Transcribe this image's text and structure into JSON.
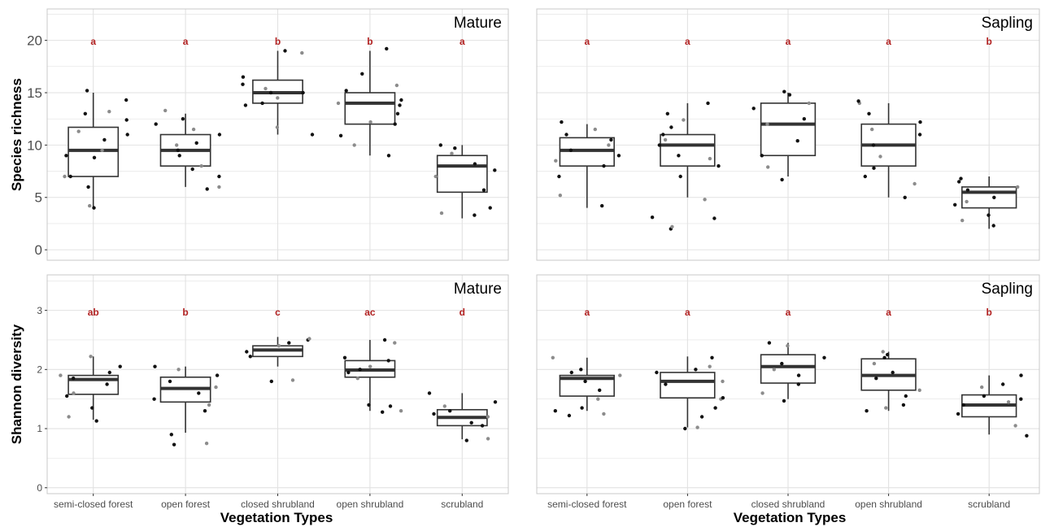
{
  "x_axis_title": "Vegetation Types",
  "colors": {
    "letter": "#b22222",
    "box_stroke": "#333333",
    "point": "#111111",
    "point_light": "#8c8c8c",
    "grid": "#e2e2e2",
    "panel_border": "#c8c8c8"
  },
  "chart_data": [
    {
      "type": "box",
      "row": "top",
      "col": "left",
      "panel_label": "Mature",
      "ylabel": "Species richness",
      "ylim": [
        -1,
        23
      ],
      "yticks": [
        0,
        5,
        10,
        15,
        20
      ],
      "categories": [
        "semi-closed forest",
        "open forest",
        "closed shrubland",
        "open shrubland",
        "scrubland"
      ],
      "letters": [
        "a",
        "a",
        "b",
        "b",
        "a"
      ],
      "boxes": [
        {
          "whisker_low": 4,
          "q1": 7,
          "median": 9.5,
          "q3": 11.7,
          "whisker_high": 15
        },
        {
          "whisker_low": 6,
          "q1": 8,
          "median": 9.5,
          "q3": 11,
          "whisker_high": 13
        },
        {
          "whisker_low": 11,
          "q1": 14,
          "median": 15,
          "q3": 16.2,
          "whisker_high": 19
        },
        {
          "whisker_low": 9,
          "q1": 12,
          "median": 14,
          "q3": 15,
          "whisker_high": 19
        },
        {
          "whisker_low": 3,
          "q1": 5.5,
          "median": 8,
          "q3": 9,
          "whisker_high": 10
        }
      ],
      "points": [
        [
          4,
          4.2,
          6,
          7,
          7,
          8.8,
          9,
          9.5,
          10.5,
          11,
          11.3,
          12.4,
          13,
          13.2,
          14.3,
          15.2
        ],
        [
          5.8,
          6,
          7,
          7.7,
          8,
          9,
          9.5,
          10,
          10.2,
          11,
          11.5,
          12,
          12.5,
          13.3
        ],
        [
          11,
          11.7,
          13.8,
          14,
          14.5,
          15,
          15,
          15.4,
          15.8,
          16.5,
          18.8,
          19
        ],
        [
          9,
          10,
          10.9,
          12,
          12.2,
          13,
          13.8,
          14,
          14.3,
          15.2,
          15.7,
          16.8,
          19.2
        ],
        [
          3.3,
          3.5,
          4,
          5.7,
          7,
          7.6,
          8.2,
          9.2,
          9.7,
          10
        ]
      ]
    },
    {
      "type": "box",
      "row": "top",
      "col": "right",
      "panel_label": "Sapling",
      "ylabel": "",
      "ylim": [
        -1,
        23
      ],
      "yticks": [
        0,
        5,
        10,
        15,
        20
      ],
      "categories": [
        "semi-closed forest",
        "open forest",
        "closed shrubland",
        "open shrubland",
        "scrubland"
      ],
      "letters": [
        "a",
        "a",
        "a",
        "a",
        "b"
      ],
      "boxes": [
        {
          "whisker_low": 4,
          "q1": 8,
          "median": 9.5,
          "q3": 10.7,
          "whisker_high": 12
        },
        {
          "whisker_low": 5,
          "q1": 8,
          "median": 10,
          "q3": 11,
          "whisker_high": 14
        },
        {
          "whisker_low": 7,
          "q1": 9,
          "median": 12,
          "q3": 14,
          "whisker_high": 15
        },
        {
          "whisker_low": 5,
          "q1": 8,
          "median": 10,
          "q3": 12,
          "whisker_high": 14
        },
        {
          "whisker_low": 2,
          "q1": 4,
          "median": 5.5,
          "q3": 6,
          "whisker_high": 7
        }
      ],
      "points": [
        [
          4.2,
          5.2,
          7,
          8,
          8.5,
          9,
          9.5,
          10,
          10.5,
          11,
          11.5,
          12.2
        ],
        [
          2,
          2.2,
          3,
          3.1,
          4.8,
          7,
          8,
          8.7,
          9,
          10,
          10.5,
          11,
          11.7,
          12.4,
          13,
          14
        ],
        [
          6.7,
          7.9,
          9,
          10.4,
          12,
          12.5,
          13.5,
          14,
          14.8,
          15.1
        ],
        [
          5,
          6.3,
          7,
          7.8,
          8.9,
          10,
          11,
          11.5,
          12.2,
          13,
          14,
          14.2
        ],
        [
          2.3,
          2.8,
          3.3,
          4.3,
          4.6,
          5,
          5.7,
          6,
          6.5,
          6.8
        ]
      ]
    },
    {
      "type": "box",
      "row": "bottom",
      "col": "left",
      "panel_label": "Mature",
      "ylabel": "Shannon diversity",
      "ylim": [
        -0.1,
        3.6
      ],
      "yticks": [
        0,
        1,
        2,
        3
      ],
      "categories": [
        "semi-closed forest",
        "open forest",
        "closed shrubland",
        "open shrubland",
        "scrubland"
      ],
      "letters": [
        "ab",
        "b",
        "c",
        "ac",
        "d"
      ],
      "boxes": [
        {
          "whisker_low": 1.15,
          "q1": 1.58,
          "median": 1.83,
          "q3": 1.9,
          "whisker_high": 2.22
        },
        {
          "whisker_low": 0.93,
          "q1": 1.45,
          "median": 1.68,
          "q3": 1.87,
          "whisker_high": 2.05
        },
        {
          "whisker_low": 2.05,
          "q1": 2.22,
          "median": 2.33,
          "q3": 2.4,
          "whisker_high": 2.55
        },
        {
          "whisker_low": 1.3,
          "q1": 1.87,
          "median": 1.99,
          "q3": 2.15,
          "whisker_high": 2.5
        },
        {
          "whisker_low": 0.82,
          "q1": 1.05,
          "median": 1.19,
          "q3": 1.32,
          "whisker_high": 1.6
        }
      ],
      "points": [
        [
          1.13,
          1.2,
          1.35,
          1.55,
          1.6,
          1.75,
          1.85,
          1.9,
          1.95,
          2.05,
          2.22
        ],
        [
          0.73,
          0.75,
          0.9,
          1.3,
          1.4,
          1.5,
          1.6,
          1.7,
          1.8,
          1.9,
          2.0,
          2.05
        ],
        [
          1.8,
          1.82,
          2.22,
          2.3,
          2.4,
          2.45,
          2.5,
          2.52
        ],
        [
          1.28,
          1.3,
          1.38,
          1.4,
          1.85,
          1.95,
          2.0,
          2.05,
          2.15,
          2.2,
          2.45,
          2.5
        ],
        [
          0.8,
          0.83,
          1.05,
          1.1,
          1.2,
          1.25,
          1.3,
          1.38,
          1.45,
          1.6
        ]
      ]
    },
    {
      "type": "box",
      "row": "bottom",
      "col": "right",
      "panel_label": "Sapling",
      "ylabel": "",
      "ylim": [
        -0.1,
        3.6
      ],
      "yticks": [
        0,
        1,
        2,
        3
      ],
      "categories": [
        "semi-closed forest",
        "open forest",
        "closed shrubland",
        "open shrubland",
        "scrubland"
      ],
      "letters": [
        "a",
        "a",
        "a",
        "a",
        "b"
      ],
      "boxes": [
        {
          "whisker_low": 1.3,
          "q1": 1.55,
          "median": 1.85,
          "q3": 1.9,
          "whisker_high": 2.2
        },
        {
          "whisker_low": 1.02,
          "q1": 1.52,
          "median": 1.8,
          "q3": 1.95,
          "whisker_high": 2.22
        },
        {
          "whisker_low": 1.5,
          "q1": 1.77,
          "median": 2.05,
          "q3": 2.25,
          "whisker_high": 2.45
        },
        {
          "whisker_low": 1.3,
          "q1": 1.65,
          "median": 1.9,
          "q3": 2.18,
          "whisker_high": 2.3
        },
        {
          "whisker_low": 0.9,
          "q1": 1.2,
          "median": 1.4,
          "q3": 1.57,
          "whisker_high": 1.9
        }
      ],
      "points": [
        [
          1.22,
          1.25,
          1.3,
          1.35,
          1.5,
          1.65,
          1.8,
          1.9,
          1.95,
          2.0,
          2.2
        ],
        [
          1.0,
          1.02,
          1.2,
          1.35,
          1.5,
          1.52,
          1.75,
          1.8,
          1.95,
          2.0,
          2.05,
          2.2
        ],
        [
          1.47,
          1.6,
          1.75,
          1.9,
          2.0,
          2.1,
          2.2,
          2.4,
          2.45
        ],
        [
          1.3,
          1.35,
          1.4,
          1.55,
          1.65,
          1.85,
          1.95,
          2.1,
          2.2,
          2.25,
          2.3
        ],
        [
          0.88,
          1.05,
          1.25,
          1.4,
          1.45,
          1.5,
          1.55,
          1.7,
          1.75,
          1.9
        ]
      ]
    }
  ]
}
